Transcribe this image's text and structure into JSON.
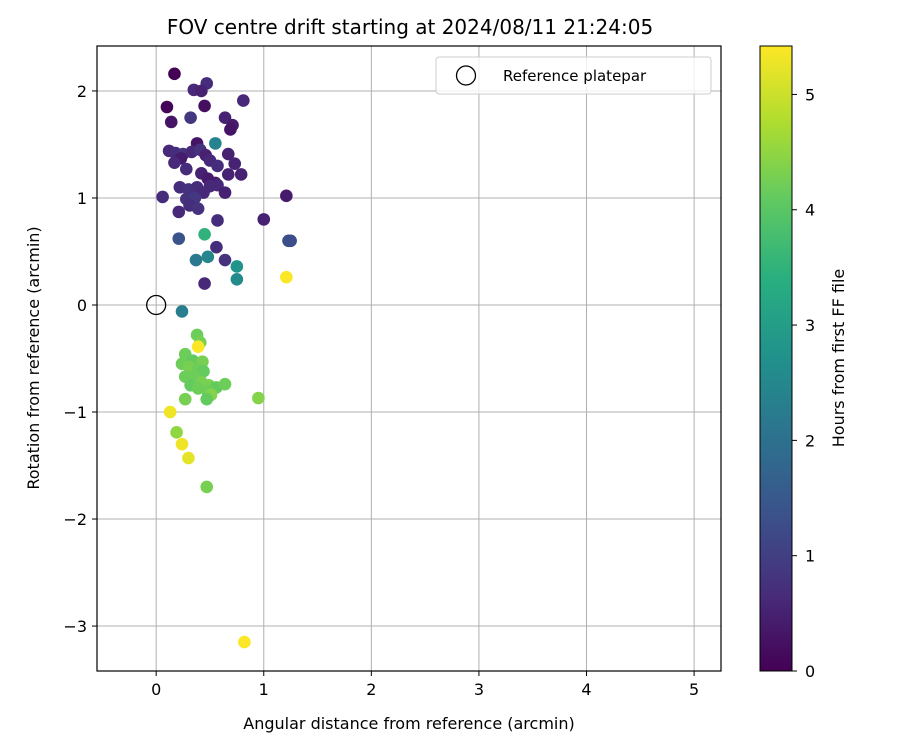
{
  "chart_data": {
    "type": "scatter",
    "title": "FOV centre drift starting at 2024/08/11 21:24:05",
    "xlabel": "Angular distance from reference (arcmin)",
    "ylabel": "Rotation from reference (arcmin)",
    "xlim": [
      -0.55,
      5.25
    ],
    "ylim": [
      -3.42,
      2.42
    ],
    "xticks": [
      0,
      1,
      2,
      3,
      4,
      5
    ],
    "yticks": [
      -3,
      -2,
      -1,
      0,
      1,
      2
    ],
    "xtick_labels": [
      "0",
      "1",
      "2",
      "3",
      "4",
      "5"
    ],
    "ytick_labels": [
      "−3",
      "−2",
      "−1",
      "0",
      "1",
      "2"
    ],
    "grid": true,
    "legend": {
      "position": "top-right",
      "entries": [
        {
          "label": "Reference platepar",
          "marker": "open-circle"
        }
      ]
    },
    "reference_point": {
      "x": 0,
      "y": 0
    },
    "colorbar": {
      "label": "Hours from first FF file",
      "colormap": "viridis",
      "range": [
        0,
        5.42
      ],
      "ticks": [
        0,
        1,
        2,
        3,
        4,
        5
      ],
      "tick_labels": [
        "0",
        "1",
        "2",
        "3",
        "4",
        "5"
      ]
    },
    "series": [
      {
        "points": [
          [
            0.17,
            2.16,
            0.0
          ],
          [
            0.47,
            2.07,
            0.7
          ],
          [
            0.35,
            2.01,
            0.6
          ],
          [
            0.42,
            2.0,
            0.5
          ],
          [
            0.81,
            1.91,
            0.6
          ],
          [
            0.1,
            1.85,
            0.05
          ],
          [
            0.45,
            1.86,
            0.2
          ],
          [
            0.32,
            1.75,
            0.9
          ],
          [
            0.64,
            1.75,
            0.5
          ],
          [
            0.14,
            1.71,
            0.3
          ],
          [
            0.71,
            1.68,
            0.4
          ],
          [
            0.69,
            1.64,
            0.3
          ],
          [
            0.38,
            1.51,
            0.3
          ],
          [
            0.55,
            1.51,
            2.4
          ],
          [
            0.12,
            1.44,
            0.6
          ],
          [
            0.18,
            1.42,
            0.7
          ],
          [
            0.25,
            1.41,
            0.8
          ],
          [
            0.33,
            1.43,
            0.6
          ],
          [
            0.41,
            1.45,
            0.8
          ],
          [
            0.46,
            1.4,
            0.5
          ],
          [
            0.23,
            1.37,
            0.4
          ],
          [
            0.17,
            1.33,
            0.6
          ],
          [
            0.5,
            1.35,
            0.6
          ],
          [
            0.57,
            1.3,
            0.7
          ],
          [
            0.67,
            1.41,
            0.5
          ],
          [
            0.73,
            1.32,
            0.5
          ],
          [
            0.28,
            1.27,
            0.7
          ],
          [
            0.42,
            1.23,
            0.5
          ],
          [
            0.48,
            1.18,
            0.4
          ],
          [
            0.55,
            1.14,
            0.4
          ],
          [
            0.67,
            1.22,
            0.5
          ],
          [
            0.79,
            1.22,
            0.5
          ],
          [
            0.22,
            1.1,
            0.7
          ],
          [
            0.3,
            1.08,
            0.8
          ],
          [
            0.38,
            1.1,
            0.7
          ],
          [
            0.44,
            1.05,
            0.6
          ],
          [
            0.5,
            1.11,
            0.6
          ],
          [
            0.57,
            1.12,
            0.6
          ],
          [
            0.64,
            1.05,
            0.5
          ],
          [
            0.06,
            1.01,
            0.7
          ],
          [
            0.28,
            0.99,
            0.8
          ],
          [
            0.36,
            1.0,
            0.9
          ],
          [
            0.31,
            0.93,
            0.7
          ],
          [
            0.39,
            0.9,
            0.8
          ],
          [
            0.21,
            0.87,
            0.6
          ],
          [
            0.57,
            0.79,
            0.7
          ],
          [
            1.0,
            0.8,
            0.5
          ],
          [
            1.21,
            1.02,
            0.4
          ],
          [
            0.21,
            0.62,
            1.4
          ],
          [
            0.45,
            0.66,
            3.5
          ],
          [
            1.23,
            0.6,
            1.3
          ],
          [
            1.25,
            0.6,
            1.3
          ],
          [
            0.56,
            0.54,
            0.7
          ],
          [
            0.48,
            0.45,
            2.5
          ],
          [
            0.37,
            0.42,
            2.2
          ],
          [
            0.64,
            0.42,
            0.8
          ],
          [
            0.75,
            0.36,
            2.8
          ],
          [
            1.21,
            0.26,
            5.4
          ],
          [
            0.75,
            0.24,
            2.6
          ],
          [
            0.45,
            0.2,
            0.6
          ],
          [
            0.24,
            -0.06,
            2.3
          ],
          [
            0.38,
            -0.28,
            4.2
          ],
          [
            0.41,
            -0.35,
            4.3
          ],
          [
            0.39,
            -0.39,
            5.4
          ],
          [
            0.27,
            -0.46,
            4.2
          ],
          [
            0.34,
            -0.52,
            4.1
          ],
          [
            0.43,
            -0.53,
            4.3
          ],
          [
            0.24,
            -0.55,
            4.2
          ],
          [
            0.31,
            -0.58,
            4.3
          ],
          [
            0.39,
            -0.6,
            4.2
          ],
          [
            0.44,
            -0.62,
            4.1
          ],
          [
            0.27,
            -0.67,
            4.2
          ],
          [
            0.35,
            -0.66,
            4.2
          ],
          [
            0.42,
            -0.72,
            4.3
          ],
          [
            0.32,
            -0.75,
            4.1
          ],
          [
            0.39,
            -0.78,
            4.2
          ],
          [
            0.49,
            -0.75,
            4.3
          ],
          [
            0.56,
            -0.77,
            4.1
          ],
          [
            0.64,
            -0.74,
            4.2
          ],
          [
            0.48,
            -0.81,
            4.2
          ],
          [
            0.51,
            -0.84,
            4.4
          ],
          [
            0.27,
            -0.88,
            4.3
          ],
          [
            0.47,
            -0.88,
            4.1
          ],
          [
            0.95,
            -0.87,
            4.4
          ],
          [
            0.13,
            -1.0,
            5.3
          ],
          [
            0.19,
            -1.19,
            4.5
          ],
          [
            0.24,
            -1.3,
            5.3
          ],
          [
            0.3,
            -1.43,
            5.2
          ],
          [
            0.47,
            -1.7,
            4.3
          ],
          [
            0.82,
            -3.15,
            5.4
          ]
        ]
      }
    ]
  }
}
